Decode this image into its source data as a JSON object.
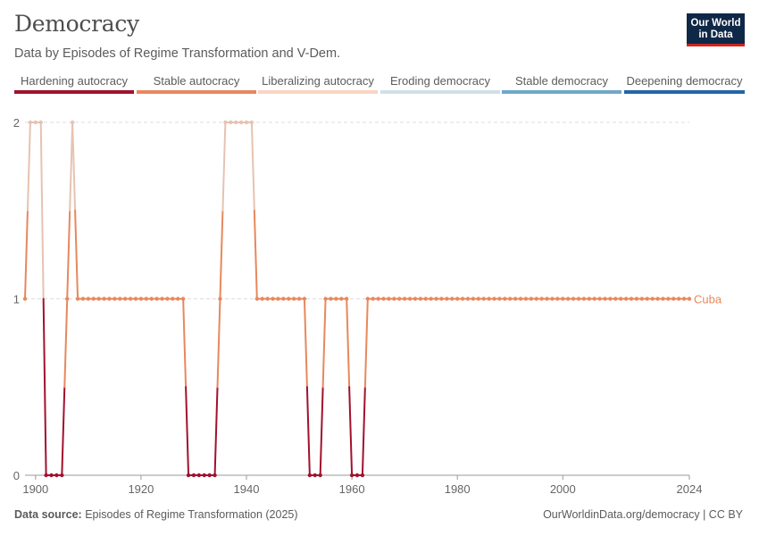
{
  "header": {
    "title": "Democracy",
    "subtitle": "Data by Episodes of Regime Transformation and V-Dem.",
    "logo_line1": "Our World",
    "logo_line2": "in Data"
  },
  "legend": [
    {
      "label": "Hardening autocracy",
      "color": "#a1112d"
    },
    {
      "label": "Stable autocracy",
      "color": "#e7885d"
    },
    {
      "label": "Liberalizing autocracy",
      "color": "#fbd4c2"
    },
    {
      "label": "Eroding democracy",
      "color": "#cfe0ea"
    },
    {
      "label": "Stable democracy",
      "color": "#6fa8c9"
    },
    {
      "label": "Deepening democracy",
      "color": "#2166a8"
    }
  ],
  "footer": {
    "source_label": "Data source:",
    "source_text": "Episodes of Regime Transformation (2025)",
    "url_text": "OurWorldinData.org/democracy | CC BY"
  },
  "chart_data": {
    "type": "line",
    "x_ticks": [
      "1900",
      "1920",
      "1940",
      "1960",
      "1980",
      "2000",
      "2024"
    ],
    "y_ticks": [
      "0",
      "1",
      "2"
    ],
    "xlim": [
      1898,
      2024
    ],
    "ylim": [
      0,
      2
    ],
    "grid": "horizontal dashed",
    "series": [
      {
        "name": "Cuba",
        "color": "#e7885d",
        "x": [
          1898,
          1899,
          1900,
          1901,
          1902,
          1903,
          1904,
          1905,
          1906,
          1907,
          1908,
          1909,
          1910,
          1911,
          1912,
          1913,
          1914,
          1915,
          1916,
          1917,
          1918,
          1919,
          1920,
          1921,
          1922,
          1923,
          1924,
          1925,
          1926,
          1927,
          1928,
          1929,
          1930,
          1931,
          1932,
          1933,
          1934,
          1935,
          1936,
          1937,
          1938,
          1939,
          1940,
          1941,
          1942,
          1943,
          1944,
          1945,
          1946,
          1947,
          1948,
          1949,
          1950,
          1951,
          1952,
          1953,
          1954,
          1955,
          1956,
          1957,
          1958,
          1959,
          1960,
          1961,
          1962,
          1963,
          1964,
          1965,
          1966,
          1967,
          1968,
          1969,
          1970,
          1971,
          1972,
          1973,
          1974,
          1975,
          1976,
          1977,
          1978,
          1979,
          1980,
          1981,
          1982,
          1983,
          1984,
          1985,
          1986,
          1987,
          1988,
          1989,
          1990,
          1991,
          1992,
          1993,
          1994,
          1995,
          1996,
          1997,
          1998,
          1999,
          2000,
          2001,
          2002,
          2003,
          2004,
          2005,
          2006,
          2007,
          2008,
          2009,
          2010,
          2011,
          2012,
          2013,
          2014,
          2015,
          2016,
          2017,
          2018,
          2019,
          2020,
          2021,
          2022,
          2023,
          2024
        ],
        "y": [
          1,
          2,
          2,
          2,
          0,
          0,
          0,
          0,
          1,
          2,
          1,
          1,
          1,
          1,
          1,
          1,
          1,
          1,
          1,
          1,
          1,
          1,
          1,
          1,
          1,
          1,
          1,
          1,
          1,
          1,
          1,
          0,
          0,
          0,
          0,
          0,
          0,
          1,
          2,
          2,
          2,
          2,
          2,
          2,
          1,
          1,
          1,
          1,
          1,
          1,
          1,
          1,
          1,
          1,
          0,
          0,
          0,
          1,
          1,
          1,
          1,
          1,
          0,
          0,
          0,
          1,
          1,
          1,
          1,
          1,
          1,
          1,
          1,
          1,
          1,
          1,
          1,
          1,
          1,
          1,
          1,
          1,
          1,
          1,
          1,
          1,
          1,
          1,
          1,
          1,
          1,
          1,
          1,
          1,
          1,
          1,
          1,
          1,
          1,
          1,
          1,
          1,
          1,
          1,
          1,
          1,
          1,
          1,
          1,
          1,
          1,
          1,
          1,
          1,
          1,
          1,
          1,
          1,
          1,
          1,
          1,
          1,
          1,
          1,
          1,
          1,
          1
        ]
      }
    ],
    "category_colors": {
      "0": "#a1112d",
      "1": "#e7885d",
      "2": "#e6c3b1"
    }
  }
}
